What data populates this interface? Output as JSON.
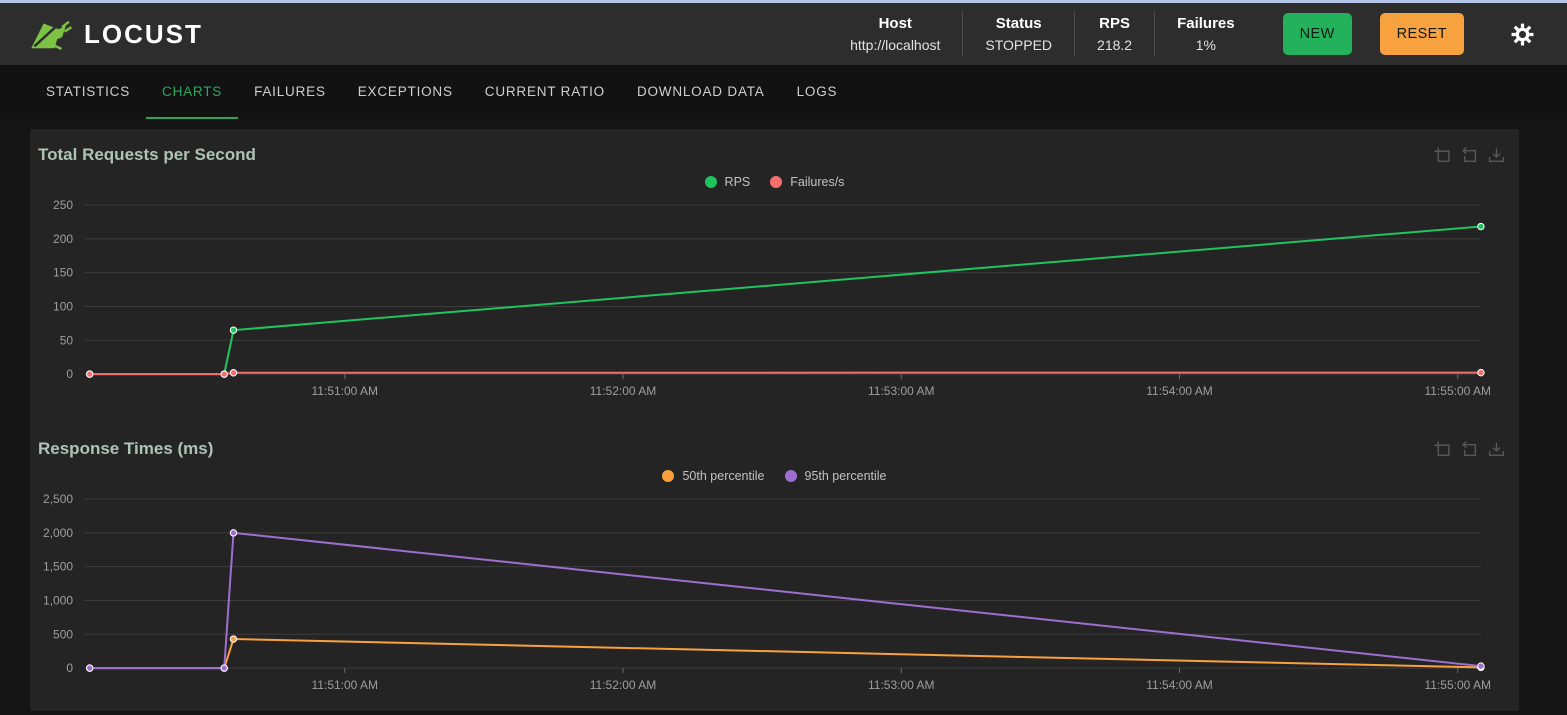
{
  "colors": {
    "accent_green": "#2aa75f",
    "logo_green": "#7dc242",
    "new_button_bg": "#23b25b",
    "reset_button_bg": "#f7a23f",
    "top_strip": "#b5c6ea",
    "panel_bg": "#242424"
  },
  "header": {
    "logo_text": "LOCUST",
    "stats": [
      {
        "label": "Host",
        "value": "http://localhost"
      },
      {
        "label": "Status",
        "value": "STOPPED"
      },
      {
        "label": "RPS",
        "value": "218.2"
      },
      {
        "label": "Failures",
        "value": "1%"
      }
    ],
    "new_button_label": "NEW",
    "reset_button_label": "RESET",
    "gear_icon": "settings-gear"
  },
  "tabs": {
    "active": "CHARTS",
    "items": [
      "STATISTICS",
      "CHARTS",
      "FAILURES",
      "EXCEPTIONS",
      "CURRENT RATIO",
      "DOWNLOAD DATA",
      "LOGS"
    ]
  },
  "toolbox_buttons": [
    "zoom-select",
    "restore",
    "save-image"
  ],
  "chart_data": [
    {
      "type": "line",
      "title": "Total Requests per Second",
      "x_domain": [
        "11:50:04 AM",
        "11:55:05 AM"
      ],
      "xticks": [
        "11:51:00 AM",
        "11:52:00 AM",
        "11:53:00 AM",
        "11:54:00 AM",
        "11:55:00 AM"
      ],
      "ylim": [
        0,
        250
      ],
      "yticks": [
        0,
        50,
        100,
        150,
        200,
        250
      ],
      "ytick_labels": [
        "0",
        "50",
        "100",
        "150",
        "200",
        "250"
      ],
      "grid": true,
      "legend_position": "top-center",
      "series": [
        {
          "name": "RPS",
          "color": "#20c45f",
          "points": [
            [
              "11:50:05 AM",
              0
            ],
            [
              "11:50:34 AM",
              0
            ],
            [
              "11:50:36 AM",
              65
            ],
            [
              "11:55:05 AM",
              218.2
            ]
          ]
        },
        {
          "name": "Failures/s",
          "color": "#f56e6e",
          "points": [
            [
              "11:50:05 AM",
              0
            ],
            [
              "11:50:34 AM",
              0
            ],
            [
              "11:50:36 AM",
              2
            ],
            [
              "11:55:05 AM",
              2.2
            ]
          ]
        }
      ]
    },
    {
      "type": "line",
      "title": "Response Times (ms)",
      "x_domain": [
        "11:50:04 AM",
        "11:55:05 AM"
      ],
      "xticks": [
        "11:51:00 AM",
        "11:52:00 AM",
        "11:53:00 AM",
        "11:54:00 AM",
        "11:55:00 AM"
      ],
      "ylim": [
        0,
        2500
      ],
      "yticks": [
        0,
        500,
        1000,
        1500,
        2000,
        2500
      ],
      "ytick_labels": [
        "0",
        "500",
        "1,000",
        "1,500",
        "2,000",
        "2,500"
      ],
      "grid": true,
      "legend_position": "top-center",
      "series": [
        {
          "name": "50th percentile",
          "color": "#f9a13c",
          "points": [
            [
              "11:50:05 AM",
              0
            ],
            [
              "11:50:34 AM",
              0
            ],
            [
              "11:50:36 AM",
              430
            ],
            [
              "11:55:05 AM",
              10
            ]
          ]
        },
        {
          "name": "95th percentile",
          "color": "#9f6fd0",
          "points": [
            [
              "11:50:05 AM",
              0
            ],
            [
              "11:50:34 AM",
              0
            ],
            [
              "11:50:36 AM",
              2000
            ],
            [
              "11:55:05 AM",
              30
            ]
          ]
        }
      ]
    }
  ]
}
